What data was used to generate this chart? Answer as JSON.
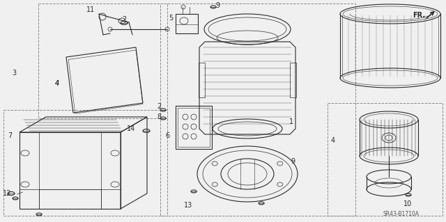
{
  "bg_color": "#f0f0f0",
  "diagram_code": "SR43-B1710A",
  "line_color": "#2a2a2a",
  "dashed_color": "#888888",
  "fig_width": 6.4,
  "fig_height": 3.19,
  "dpi": 100,
  "labels": [
    [
      "3",
      18,
      105
    ],
    [
      "7",
      18,
      195
    ],
    [
      "12",
      12,
      278
    ],
    [
      "11",
      130,
      18
    ],
    [
      "2",
      176,
      35
    ],
    [
      "4",
      145,
      120
    ],
    [
      "5",
      258,
      28
    ],
    [
      "9",
      310,
      10
    ],
    [
      "2",
      238,
      155
    ],
    [
      "8",
      238,
      168
    ],
    [
      "6",
      248,
      193
    ],
    [
      "14",
      192,
      185
    ],
    [
      "13",
      276,
      295
    ],
    [
      "1",
      416,
      175
    ],
    [
      "9",
      418,
      232
    ],
    [
      "4",
      480,
      200
    ],
    [
      "10",
      585,
      295
    ]
  ]
}
